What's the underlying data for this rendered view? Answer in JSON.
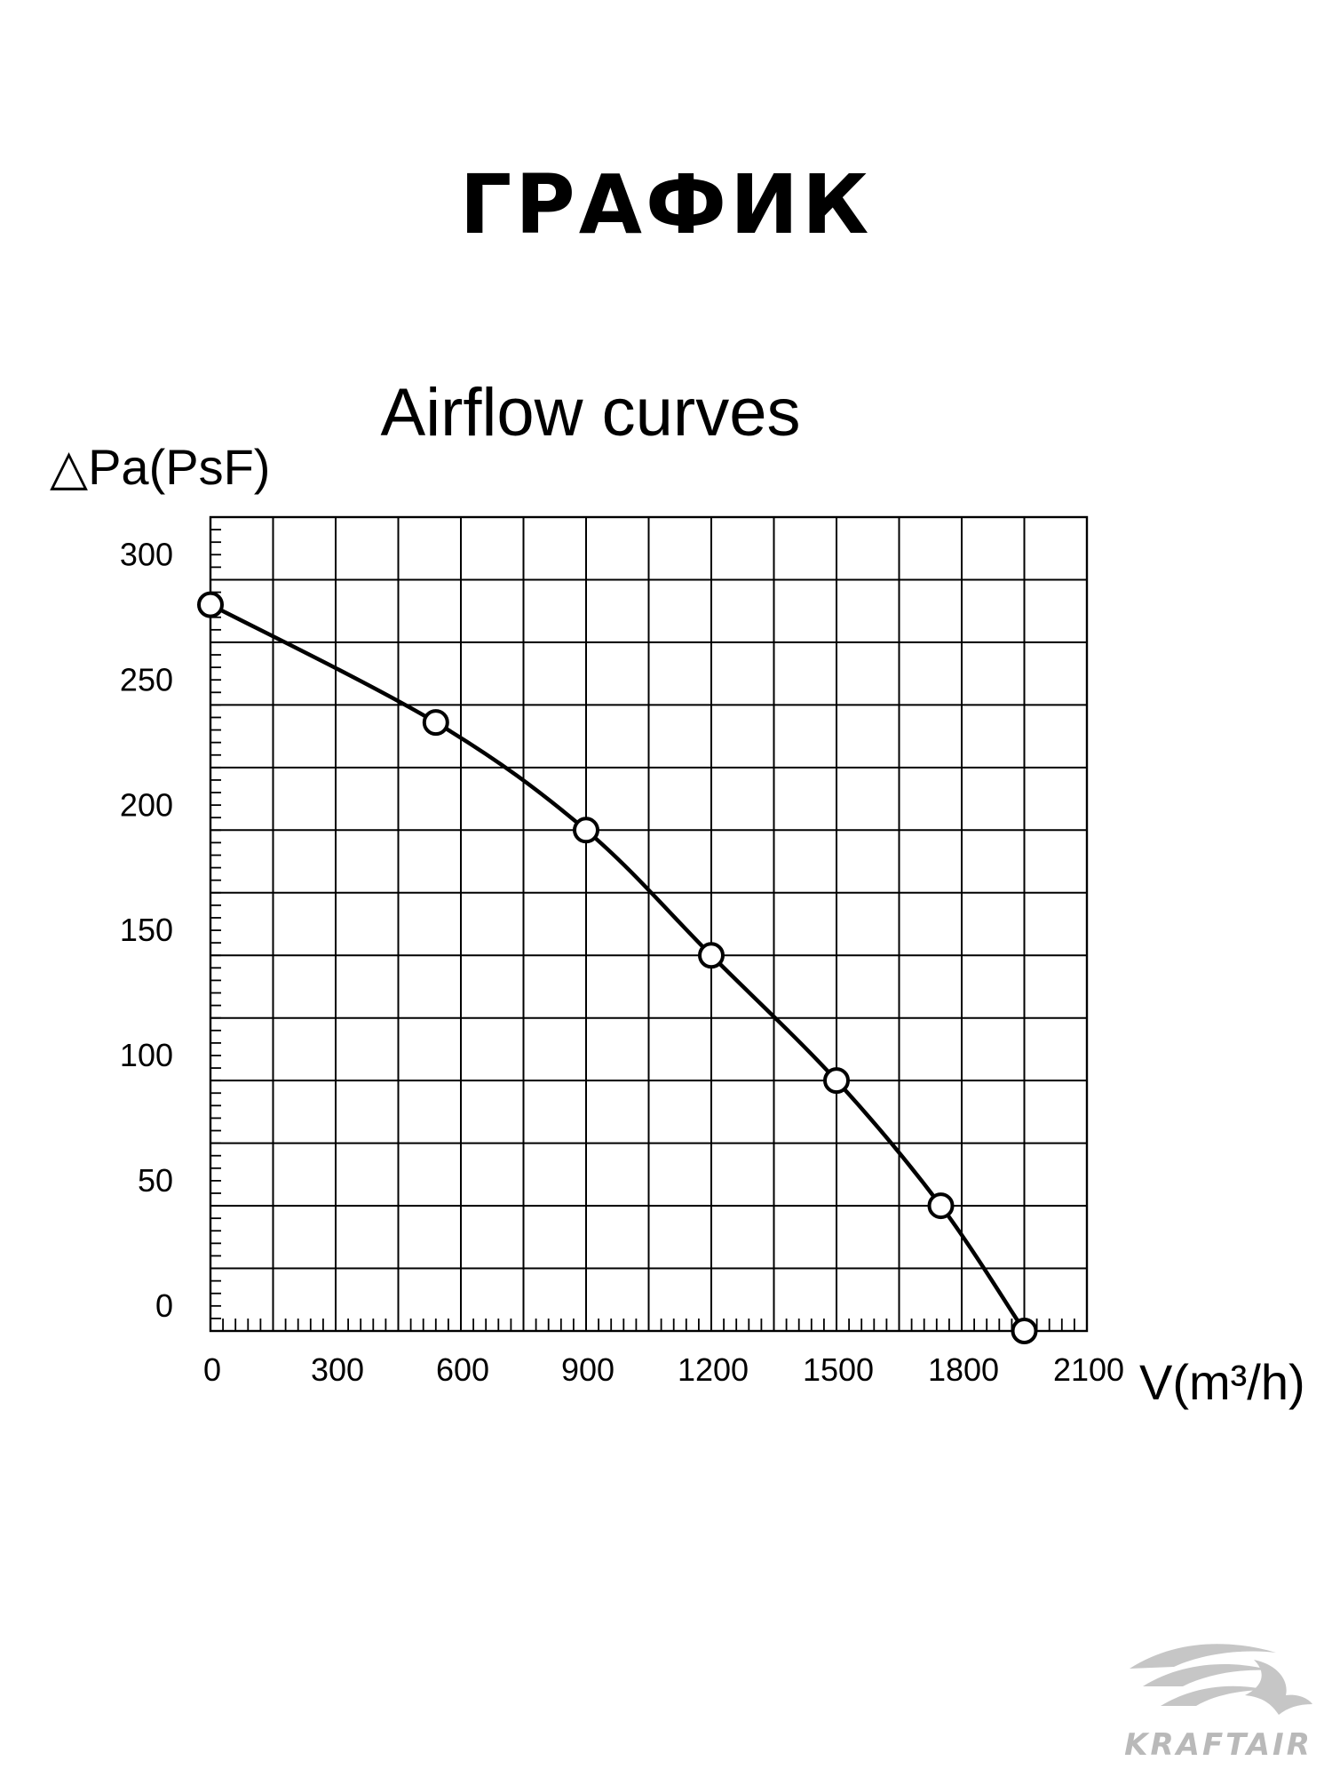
{
  "page": {
    "heading": "ГРАФИК"
  },
  "chart_data": {
    "type": "line",
    "title": "Airflow curves",
    "ylabel": "△Pa(PsF)",
    "xlabel": "V(m³/h)",
    "x_ticks": [
      0,
      300,
      600,
      900,
      1200,
      1500,
      1800,
      2100
    ],
    "y_ticks": [
      0,
      50,
      100,
      150,
      200,
      250,
      300
    ],
    "xlim": [
      0,
      2100
    ],
    "ylim": [
      0,
      325
    ],
    "grid": true,
    "legend": "none",
    "series": [
      {
        "x": [
          0,
          540,
          900,
          1200,
          1500,
          1750,
          1950
        ],
        "y": [
          290,
          243,
          200,
          150,
          100,
          50,
          0
        ]
      }
    ],
    "colors": {
      "line": "#000000",
      "grid": "#000000",
      "background": "#ffffff"
    }
  },
  "logo": {
    "text": "KRAFTAIR"
  }
}
